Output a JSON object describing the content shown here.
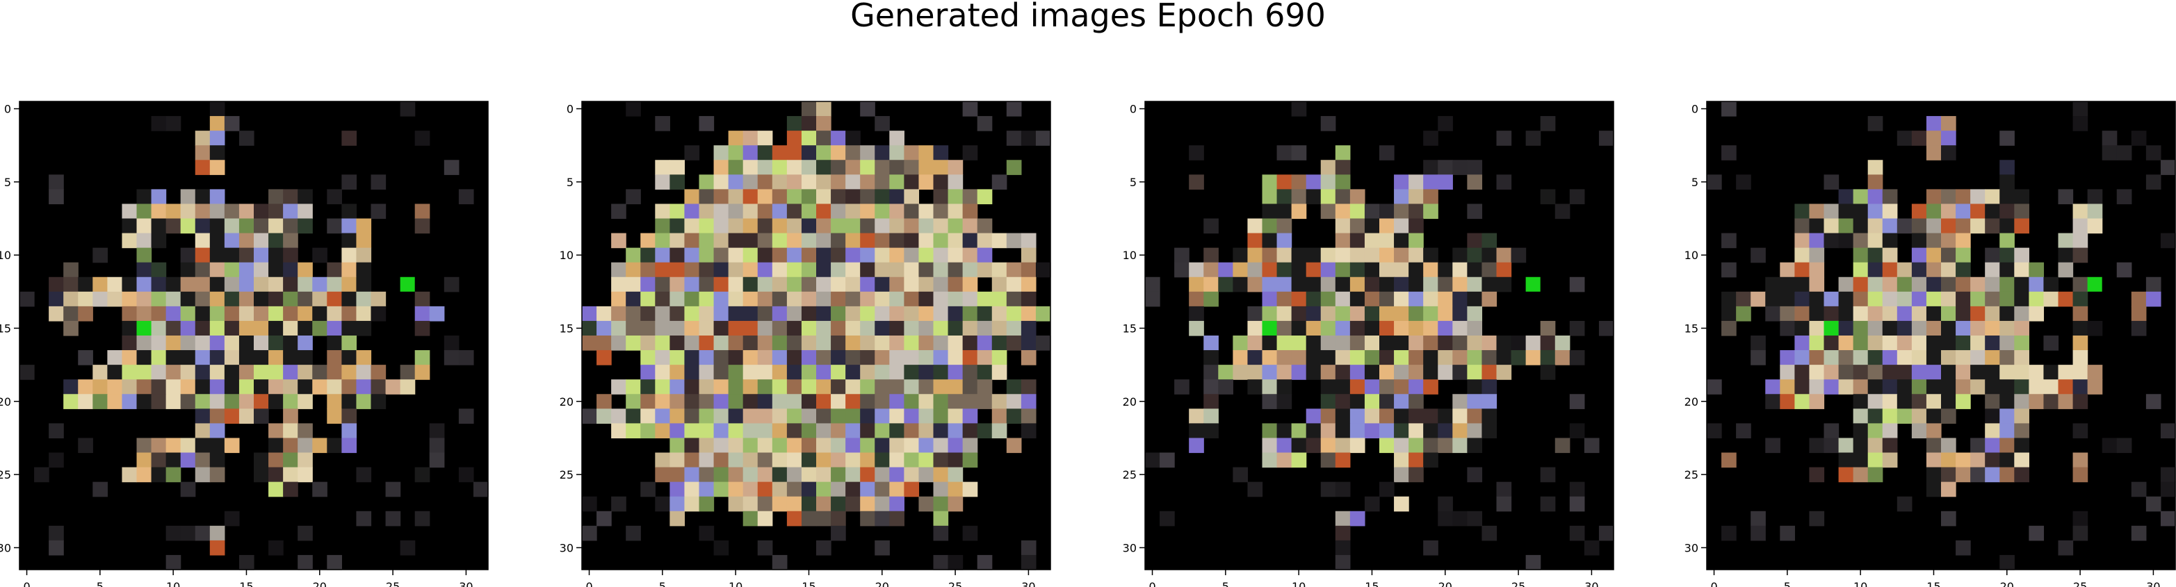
{
  "figure": {
    "title": "Generated images Epoch 690"
  },
  "chart_data": {
    "type": "heatmap",
    "title": "Generated images Epoch 690",
    "panels": [
      {
        "x_ticks": [
          0,
          5,
          10,
          15,
          20,
          25,
          30
        ],
        "y_ticks": [
          0,
          5,
          10,
          15,
          20,
          25,
          30
        ],
        "xlim": [
          -0.5,
          31.5
        ],
        "ylim": [
          31.5,
          -0.5
        ],
        "grid": "32x32 RGB pixels",
        "background": "#000000"
      },
      {
        "x_ticks": [
          0,
          5,
          10,
          15,
          20,
          25,
          30
        ],
        "y_ticks": [
          0,
          5,
          10,
          15,
          20,
          25,
          30
        ],
        "xlim": [
          -0.5,
          31.5
        ],
        "ylim": [
          31.5,
          -0.5
        ],
        "grid": "32x32 RGB pixels",
        "background": "#000000"
      },
      {
        "x_ticks": [
          0,
          5,
          10,
          15,
          20,
          25,
          30
        ],
        "y_ticks": [
          0,
          5,
          10,
          15,
          20,
          25,
          30
        ],
        "xlim": [
          -0.5,
          31.5
        ],
        "ylim": [
          31.5,
          -0.5
        ],
        "grid": "32x32 RGB pixels",
        "background": "#000000"
      },
      {
        "x_ticks": [
          0,
          5,
          10,
          15,
          20,
          25,
          30
        ],
        "y_ticks": [
          0,
          5,
          10,
          15,
          20,
          25,
          30
        ],
        "xlim": [
          -0.5,
          31.5
        ],
        "ylim": [
          31.5,
          -0.5
        ],
        "grid": "32x32 RGB pixels",
        "background": "#000000"
      }
    ]
  }
}
